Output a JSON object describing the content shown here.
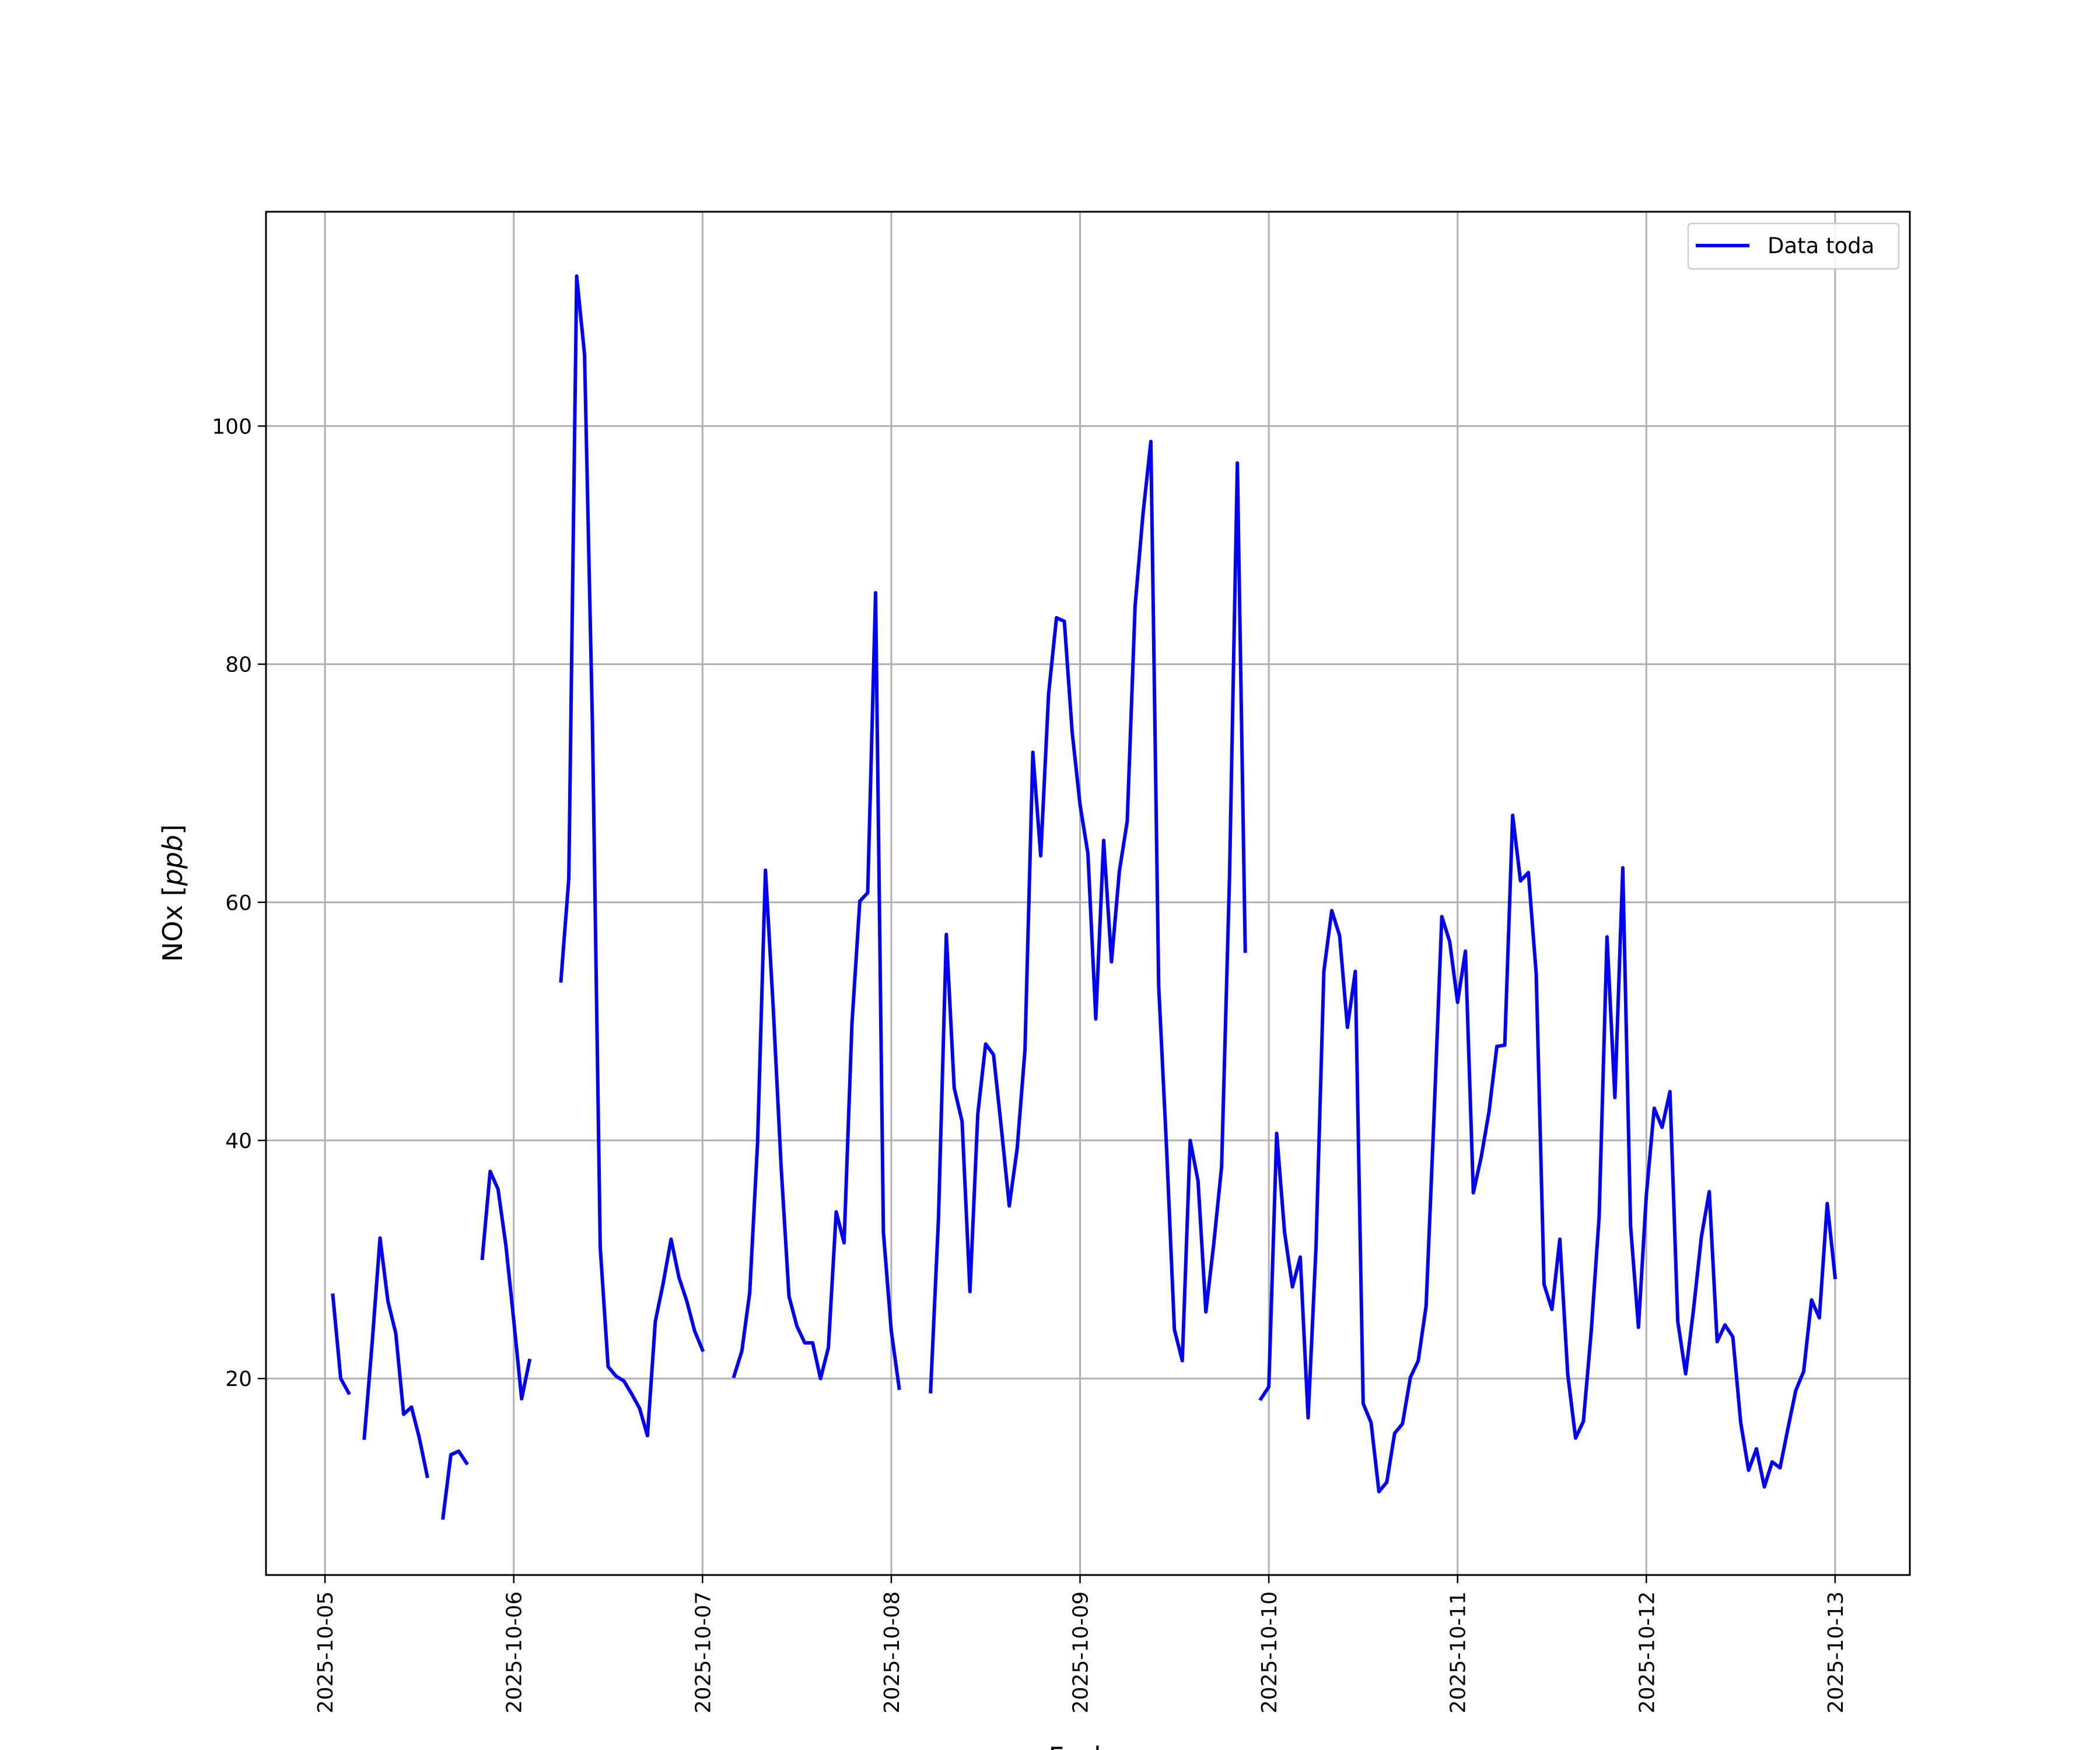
{
  "chart_data": {
    "type": "line",
    "xlabel": "Fecha",
    "ylabel_main": "NOx [",
    "ylabel_unit": "ppb",
    "ylabel_close": "]",
    "xlim": [
      "2025-10-04 16:30",
      "2025-10-13 09:30"
    ],
    "ylim": [
      3.5,
      118
    ],
    "x_ticks": [
      "2025-10-05",
      "2025-10-06",
      "2025-10-07",
      "2025-10-08",
      "2025-10-09",
      "2025-10-10",
      "2025-10-11",
      "2025-10-12",
      "2025-10-13"
    ],
    "y_ticks": [
      20,
      40,
      60,
      80,
      100
    ],
    "grid": true,
    "legend": {
      "position": "top-right",
      "entries": [
        "Data toda"
      ]
    },
    "colors": {
      "series": "#0000ff",
      "frame": "#000000",
      "grid": "#b0b0b0"
    },
    "series": [
      {
        "name": "Data toda",
        "segments": [
          [
            [
              "2025-10-05 01:00",
              27.0
            ],
            [
              "2025-10-05 02:00",
              20.0
            ],
            [
              "2025-10-05 03:00",
              18.8
            ]
          ],
          [
            [
              "2025-10-05 05:00",
              15.0
            ],
            [
              "2025-10-05 06:00",
              23.0
            ],
            [
              "2025-10-05 07:00",
              31.8
            ],
            [
              "2025-10-05 08:00",
              26.5
            ],
            [
              "2025-10-05 09:00",
              23.8
            ],
            [
              "2025-10-05 10:00",
              17.0
            ],
            [
              "2025-10-05 11:00",
              17.6
            ],
            [
              "2025-10-05 12:00",
              15.0
            ],
            [
              "2025-10-05 13:00",
              11.8
            ]
          ],
          [
            [
              "2025-10-05 15:00",
              8.3
            ],
            [
              "2025-10-05 16:00",
              13.6
            ],
            [
              "2025-10-05 17:00",
              13.9
            ],
            [
              "2025-10-05 18:00",
              12.9
            ]
          ],
          [
            [
              "2025-10-05 20:00",
              30.1
            ],
            [
              "2025-10-05 21:00",
              37.4
            ],
            [
              "2025-10-05 22:00",
              35.9
            ],
            [
              "2025-10-05 23:00",
              31.2
            ],
            [
              "2025-10-06 00:00",
              24.9
            ],
            [
              "2025-10-06 01:00",
              18.3
            ],
            [
              "2025-10-06 02:00",
              21.5
            ]
          ],
          [
            [
              "2025-10-06 06:00",
              53.4
            ],
            [
              "2025-10-06 07:00",
              62.0
            ],
            [
              "2025-10-06 08:00",
              112.6
            ],
            [
              "2025-10-06 09:00",
              106.0
            ],
            [
              "2025-10-06 10:00",
              75.0
            ],
            [
              "2025-10-06 11:00",
              31.0
            ],
            [
              "2025-10-06 12:00",
              21.0
            ],
            [
              "2025-10-06 13:00",
              20.2
            ],
            [
              "2025-10-06 14:00",
              19.8
            ],
            [
              "2025-10-06 15:00",
              18.7
            ],
            [
              "2025-10-06 16:00",
              17.5
            ],
            [
              "2025-10-06 17:00",
              15.2
            ],
            [
              "2025-10-06 18:00",
              24.8
            ],
            [
              "2025-10-06 19:00",
              28.0
            ],
            [
              "2025-10-06 20:00",
              31.7
            ],
            [
              "2025-10-06 21:00",
              28.5
            ],
            [
              "2025-10-06 22:00",
              26.5
            ],
            [
              "2025-10-06 23:00",
              24.0
            ],
            [
              "2025-10-07 00:00",
              22.4
            ]
          ],
          [
            [
              "2025-10-07 04:00",
              20.2
            ],
            [
              "2025-10-07 05:00",
              22.3
            ],
            [
              "2025-10-07 06:00",
              27.2
            ],
            [
              "2025-10-07 07:00",
              39.8
            ],
            [
              "2025-10-07 08:00",
              62.7
            ],
            [
              "2025-10-07 09:00",
              51.0
            ],
            [
              "2025-10-07 10:00",
              37.7
            ],
            [
              "2025-10-07 11:00",
              26.9
            ],
            [
              "2025-10-07 12:00",
              24.4
            ],
            [
              "2025-10-07 13:00",
              23.0
            ],
            [
              "2025-10-07 14:00",
              23.0
            ],
            [
              "2025-10-07 15:00",
              20.0
            ],
            [
              "2025-10-07 16:00",
              22.6
            ],
            [
              "2025-10-07 17:00",
              34.0
            ],
            [
              "2025-10-07 18:00",
              31.4
            ],
            [
              "2025-10-07 19:00",
              49.8
            ],
            [
              "2025-10-07 20:00",
              60.1
            ],
            [
              "2025-10-07 21:00",
              60.8
            ],
            [
              "2025-10-07 22:00",
              86.0
            ],
            [
              "2025-10-07 23:00",
              32.3
            ],
            [
              "2025-10-08 00:00",
              24.0
            ],
            [
              "2025-10-08 01:00",
              19.2
            ]
          ],
          [
            [
              "2025-10-08 05:00",
              18.9
            ],
            [
              "2025-10-08 06:00",
              33.4
            ],
            [
              "2025-10-08 07:00",
              57.3
            ],
            [
              "2025-10-08 08:00",
              44.4
            ],
            [
              "2025-10-08 09:00",
              41.6
            ],
            [
              "2025-10-08 10:00",
              27.3
            ],
            [
              "2025-10-08 11:00",
              42.2
            ],
            [
              "2025-10-08 12:00",
              48.1
            ],
            [
              "2025-10-08 13:00",
              47.2
            ],
            [
              "2025-10-08 14:00",
              41.0
            ],
            [
              "2025-10-08 15:00",
              34.5
            ],
            [
              "2025-10-08 16:00",
              39.3
            ],
            [
              "2025-10-08 17:00",
              47.6
            ],
            [
              "2025-10-08 18:00",
              72.6
            ],
            [
              "2025-10-08 19:00",
              63.9
            ],
            [
              "2025-10-08 20:00",
              77.5
            ],
            [
              "2025-10-08 21:00",
              83.9
            ],
            [
              "2025-10-08 22:00",
              83.6
            ],
            [
              "2025-10-08 23:00",
              74.3
            ],
            [
              "2025-10-09 00:00",
              68.2
            ],
            [
              "2025-10-09 01:00",
              64.1
            ],
            [
              "2025-10-09 02:00",
              50.2
            ],
            [
              "2025-10-09 03:00",
              65.2
            ],
            [
              "2025-10-09 04:00",
              55.0
            ],
            [
              "2025-10-09 05:00",
              62.6
            ],
            [
              "2025-10-09 06:00",
              66.8
            ],
            [
              "2025-10-09 07:00",
              84.9
            ],
            [
              "2025-10-09 08:00",
              92.6
            ],
            [
              "2025-10-09 09:00",
              98.7
            ],
            [
              "2025-10-09 10:00",
              53.0
            ],
            [
              "2025-10-09 11:00",
              39.4
            ],
            [
              "2025-10-09 12:00",
              24.1
            ],
            [
              "2025-10-09 13:00",
              21.5
            ],
            [
              "2025-10-09 14:00",
              40.0
            ],
            [
              "2025-10-09 15:00",
              36.6
            ],
            [
              "2025-10-09 16:00",
              25.6
            ],
            [
              "2025-10-09 17:00",
              31.3
            ],
            [
              "2025-10-09 18:00",
              37.8
            ],
            [
              "2025-10-09 19:00",
              62.0
            ],
            [
              "2025-10-09 20:00",
              96.9
            ],
            [
              "2025-10-09 21:00",
              55.9
            ]
          ],
          [
            [
              "2025-10-09 23:00",
              18.3
            ],
            [
              "2025-10-10 00:00",
              19.3
            ],
            [
              "2025-10-10 01:00",
              40.6
            ],
            [
              "2025-10-10 02:00",
              32.3
            ],
            [
              "2025-10-10 03:00",
              27.7
            ],
            [
              "2025-10-10 04:00",
              30.2
            ],
            [
              "2025-10-10 05:00",
              16.7
            ],
            [
              "2025-10-10 06:00",
              31.0
            ],
            [
              "2025-10-10 07:00",
              54.2
            ],
            [
              "2025-10-10 08:00",
              59.3
            ],
            [
              "2025-10-10 09:00",
              57.2
            ],
            [
              "2025-10-10 10:00",
              49.5
            ],
            [
              "2025-10-10 11:00",
              54.2
            ],
            [
              "2025-10-10 12:00",
              17.9
            ],
            [
              "2025-10-10 13:00",
              16.3
            ],
            [
              "2025-10-10 14:00",
              10.5
            ],
            [
              "2025-10-10 15:00",
              11.3
            ],
            [
              "2025-10-10 16:00",
              15.4
            ],
            [
              "2025-10-10 17:00",
              16.2
            ],
            [
              "2025-10-10 18:00",
              20.1
            ],
            [
              "2025-10-10 19:00",
              21.5
            ],
            [
              "2025-10-10 20:00",
              26.1
            ],
            [
              "2025-10-10 21:00",
              42.0
            ],
            [
              "2025-10-10 22:00",
              58.8
            ],
            [
              "2025-10-10 23:00",
              56.7
            ],
            [
              "2025-10-11 00:00",
              51.6
            ],
            [
              "2025-10-11 01:00",
              55.9
            ],
            [
              "2025-10-11 02:00",
              35.6
            ],
            [
              "2025-10-11 03:00",
              38.6
            ],
            [
              "2025-10-11 04:00",
              42.4
            ],
            [
              "2025-10-11 05:00",
              47.9
            ],
            [
              "2025-10-11 06:00",
              48.0
            ],
            [
              "2025-10-11 07:00",
              67.3
            ],
            [
              "2025-10-11 08:00",
              61.8
            ],
            [
              "2025-10-11 09:00",
              62.5
            ],
            [
              "2025-10-11 10:00",
              54.0
            ],
            [
              "2025-10-11 11:00",
              27.9
            ],
            [
              "2025-10-11 12:00",
              25.8
            ],
            [
              "2025-10-11 13:00",
              31.7
            ],
            [
              "2025-10-11 14:00",
              20.4
            ],
            [
              "2025-10-11 15:00",
              15.0
            ],
            [
              "2025-10-11 16:00",
              16.4
            ],
            [
              "2025-10-11 17:00",
              24.0
            ],
            [
              "2025-10-11 18:00",
              33.6
            ],
            [
              "2025-10-11 19:00",
              57.1
            ],
            [
              "2025-10-11 20:00",
              43.6
            ],
            [
              "2025-10-11 21:00",
              62.9
            ],
            [
              "2025-10-11 22:00",
              32.8
            ],
            [
              "2025-10-11 23:00",
              24.3
            ],
            [
              "2025-10-12 00:00",
              35.4
            ],
            [
              "2025-10-12 01:00",
              42.7
            ],
            [
              "2025-10-12 02:00",
              41.1
            ],
            [
              "2025-10-12 03:00",
              44.1
            ],
            [
              "2025-10-12 04:00",
              24.8
            ],
            [
              "2025-10-12 05:00",
              20.4
            ],
            [
              "2025-10-12 06:00",
              25.8
            ],
            [
              "2025-10-12 07:00",
              31.9
            ],
            [
              "2025-10-12 08:00",
              35.7
            ],
            [
              "2025-10-12 09:00",
              23.1
            ],
            [
              "2025-10-12 10:00",
              24.5
            ],
            [
              "2025-10-12 11:00",
              23.5
            ],
            [
              "2025-10-12 12:00",
              16.3
            ],
            [
              "2025-10-12 13:00",
              12.3
            ],
            [
              "2025-10-12 14:00",
              14.1
            ],
            [
              "2025-10-12 15:00",
              10.9
            ],
            [
              "2025-10-12 16:00",
              13.0
            ],
            [
              "2025-10-12 17:00",
              12.5
            ],
            [
              "2025-10-12 18:00",
              15.8
            ],
            [
              "2025-10-12 19:00",
              19.0
            ],
            [
              "2025-10-12 20:00",
              20.6
            ],
            [
              "2025-10-12 21:00",
              26.6
            ],
            [
              "2025-10-12 22:00",
              25.1
            ],
            [
              "2025-10-12 23:00",
              34.7
            ],
            [
              "2025-10-13 00:00",
              28.5
            ]
          ]
        ]
      }
    ]
  }
}
